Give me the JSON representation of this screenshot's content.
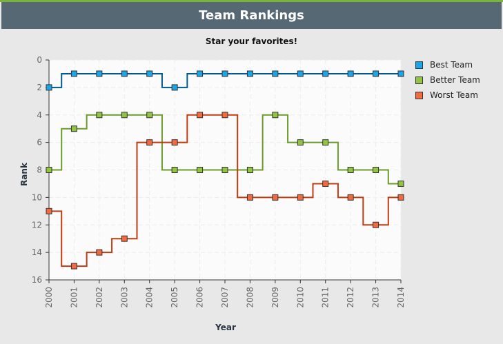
{
  "header": {
    "title": "Team Rankings"
  },
  "chart_data": {
    "type": "line",
    "step": true,
    "title": "Star your favorites!",
    "xlabel": "Year",
    "ylabel": "Rank",
    "x": [
      2000,
      2001,
      2002,
      2003,
      2004,
      2005,
      2006,
      2007,
      2008,
      2009,
      2010,
      2011,
      2012,
      2013,
      2014
    ],
    "ylim": [
      16,
      0
    ],
    "yticks": [
      0,
      2,
      4,
      6,
      8,
      10,
      12,
      14,
      16
    ],
    "y_inverted": true,
    "legend_position": "right",
    "grid": true,
    "series": [
      {
        "name": "Best Team",
        "color": "#005b8c",
        "marker": "#1aa6e8",
        "values": [
          2,
          1,
          1,
          1,
          1,
          2,
          1,
          1,
          1,
          1,
          1,
          1,
          1,
          1,
          1
        ]
      },
      {
        "name": "Better Team",
        "color": "#6b9b2a",
        "marker": "#92c441",
        "values": [
          8,
          5,
          4,
          4,
          4,
          8,
          8,
          8,
          8,
          4,
          6,
          6,
          8,
          8,
          9
        ]
      },
      {
        "name": "Worst Team",
        "color": "#c23a0f",
        "marker": "#f26a3e",
        "values": [
          11,
          15,
          14,
          13,
          6,
          6,
          4,
          4,
          10,
          10,
          10,
          9,
          10,
          12,
          10
        ]
      }
    ]
  }
}
